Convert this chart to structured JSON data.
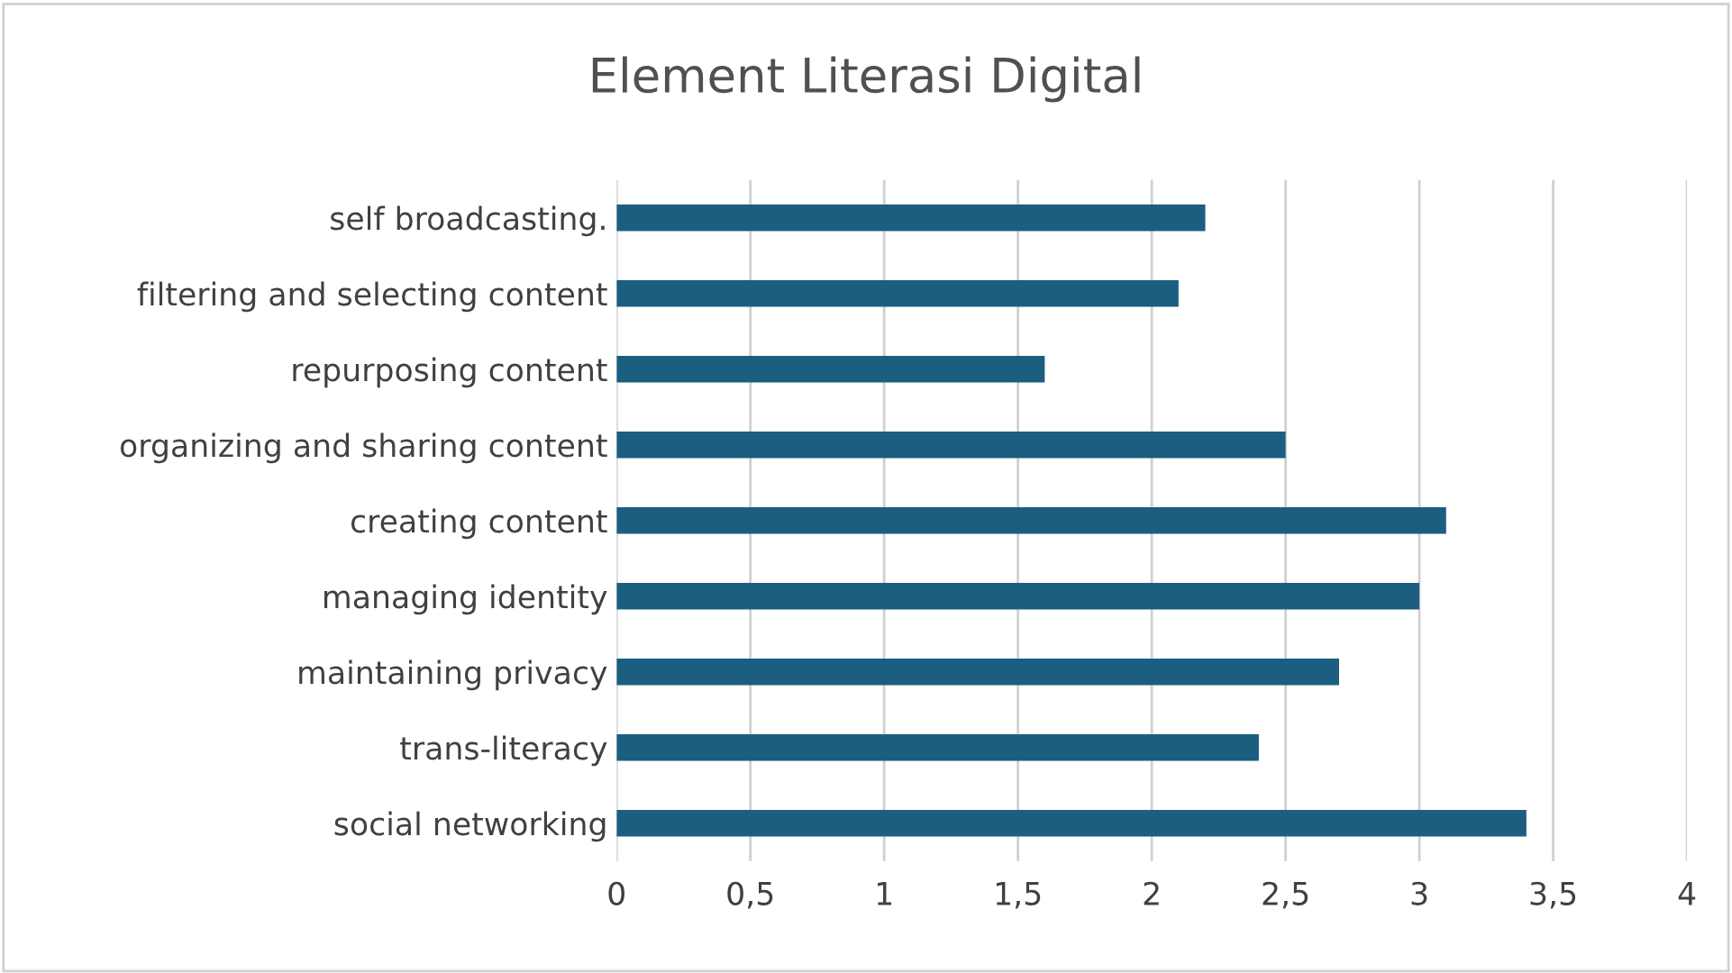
{
  "chart_data": {
    "type": "bar",
    "orientation": "horizontal",
    "title": "Element Literasi Digital",
    "categories": [
      "self broadcasting.",
      "filtering and selecting content",
      "repurposing content",
      "organizing and sharing content",
      "creating content",
      "managing identity",
      "maintaining privacy",
      "trans-literacy",
      "social networking"
    ],
    "values": [
      2.2,
      2.1,
      1.6,
      2.5,
      3.1,
      3.0,
      2.7,
      2.4,
      3.4
    ],
    "color": "#1b5e80",
    "xlim": [
      0,
      4
    ],
    "xticks": [
      0,
      {
        "value": 0.5,
        "label": "0,5"
      },
      1,
      {
        "value": 1.5,
        "label": "1,5"
      },
      2,
      {
        "value": 2.5,
        "label": "2,5"
      },
      3,
      {
        "value": 3.5,
        "label": "3,5"
      },
      4
    ],
    "grid": "x",
    "legend": false
  }
}
